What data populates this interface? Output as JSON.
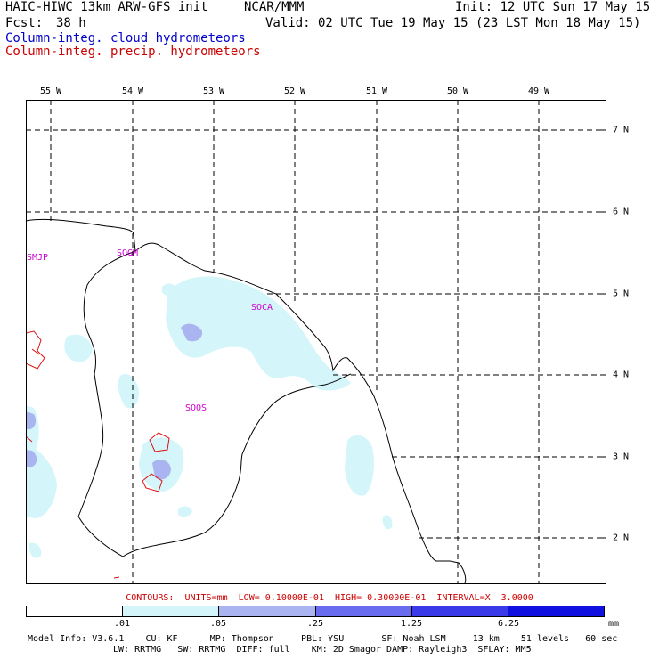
{
  "header": {
    "model": "HAIC-HIWC 13km ARW-GFS init",
    "org": "NCAR/MMM",
    "init": "Init: 12 UTC Sun 17 May 15",
    "fcst_label": "Fcst:",
    "fcst_value": "38 h",
    "valid": "Valid: 02 UTC Tue 19 May 15 (23 LST Mon 18 May 15)",
    "field1": "Column-integ. cloud hydrometeors",
    "field1_color": "#0000cc",
    "field2": "Column-integ. precip. hydrometeors",
    "field2_color": "#cc0000"
  },
  "map": {
    "lon_labels": [
      "55 W",
      "54 W",
      "53 W",
      "52 W",
      "51 W",
      "50 W",
      "49 W"
    ],
    "lat_labels": [
      "7 N",
      "6 N",
      "5 N",
      "4 N",
      "3 N",
      "2 N"
    ],
    "stations": [
      "SMJP",
      "SOGM",
      "SOCA",
      "SOOS"
    ],
    "station_color": "#cc00cc"
  },
  "contours_info": "CONTOURS:  UNITS=mm  LOW= 0.10000E-01  HIGH= 0.30000E-01  INTERVAL=X  3.0000",
  "colorbar": {
    "labels": [
      ".01",
      ".05",
      ".25",
      "1.25",
      "6.25"
    ],
    "unit": "mm",
    "colors": [
      "#ffffff",
      "#d4f6fa",
      "#aab4f0",
      "#6a6cf0",
      "#3a3ae8",
      "#1010e0"
    ]
  },
  "model_info": {
    "line1": "Model Info: V3.6.1    CU: KF      MP: Thompson     PBL: YSU       SF: Noah LSM     13 km    51 levels   60 sec",
    "line2": "LW: RRTMG   SW: RRTMG  DIFF: full    KM: 2D Smagor DAMP: Rayleigh3  SFLAY: MM5"
  }
}
